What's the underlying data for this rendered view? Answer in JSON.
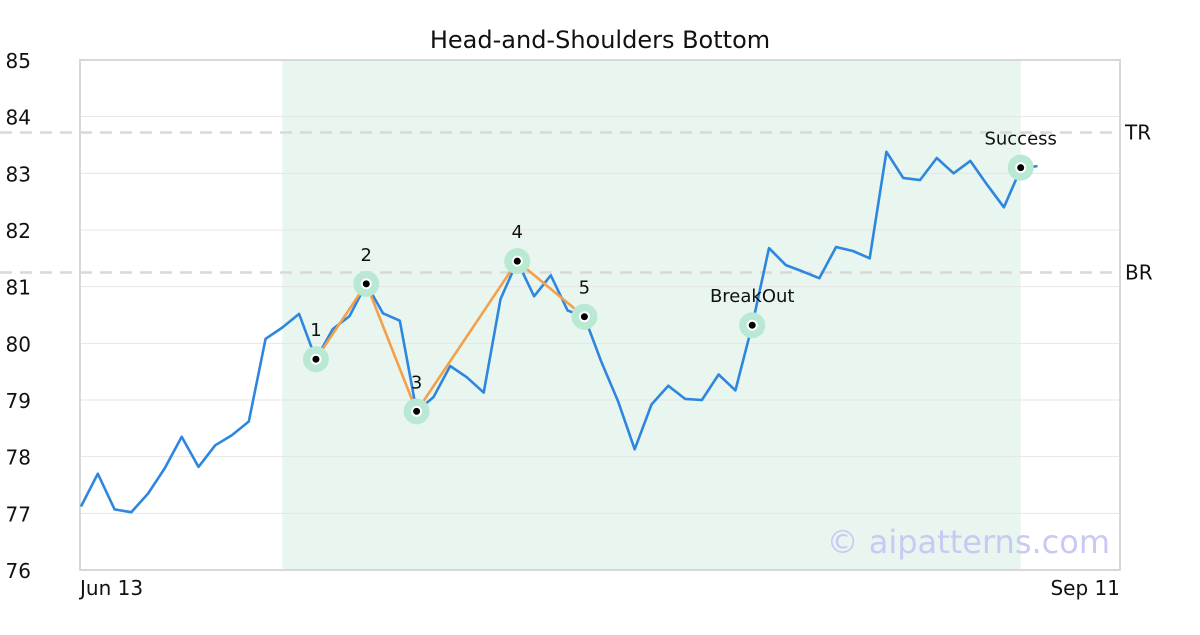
{
  "chart_data": {
    "type": "line",
    "title": "Head-and-Shoulders Bottom",
    "xlabel": "",
    "ylabel": "",
    "ylim": [
      76,
      85
    ],
    "yticks": [
      76,
      77,
      78,
      79,
      80,
      81,
      82,
      83,
      84,
      85
    ],
    "x_tick_labels": [
      "Jun 13",
      "Sep 11"
    ],
    "grid": true,
    "watermark": "© aipatterns.com",
    "series": [
      {
        "color": "#2e86de",
        "values": [
          77.12,
          77.7,
          77.07,
          77.02,
          77.35,
          77.8,
          78.35,
          77.82,
          78.2,
          78.38,
          78.62,
          80.08,
          80.28,
          80.52,
          79.72,
          80.25,
          80.48,
          81.05,
          80.53,
          80.4,
          78.8,
          79.05,
          79.6,
          79.4,
          79.13,
          80.78,
          81.45,
          80.83,
          81.2,
          80.58,
          80.47,
          79.68,
          78.98,
          78.13,
          78.92,
          79.25,
          79.02,
          79.0,
          79.45,
          79.17,
          80.32,
          81.68,
          81.38,
          81.27,
          81.15,
          81.7,
          81.63,
          81.5,
          83.38,
          82.92,
          82.88,
          83.27,
          83.0,
          83.22,
          82.8,
          82.4,
          83.08,
          83.13
        ]
      }
    ],
    "pattern_region": {
      "start_index": 12,
      "end_index": 56,
      "color": "#e8f6ef"
    },
    "pattern_line": {
      "color": "#f4a04a",
      "points": [
        {
          "index": 14,
          "value": 79.72
        },
        {
          "index": 17,
          "value": 81.05
        },
        {
          "index": 20,
          "value": 78.8
        },
        {
          "index": 26,
          "value": 81.45
        },
        {
          "index": 30,
          "value": 80.47
        }
      ]
    },
    "markers": [
      {
        "label": "1",
        "index": 14,
        "value": 79.72
      },
      {
        "label": "2",
        "index": 17,
        "value": 81.05
      },
      {
        "label": "3",
        "index": 20,
        "value": 78.8
      },
      {
        "label": "4",
        "index": 26,
        "value": 81.45
      },
      {
        "label": "5",
        "index": 30,
        "value": 80.47
      },
      {
        "label": "BreakOut",
        "index": 40,
        "value": 80.32
      },
      {
        "label": "Success",
        "index": 56,
        "value": 83.1
      }
    ],
    "reference_lines": [
      {
        "label": "TR",
        "value": 83.72
      },
      {
        "label": "BR",
        "value": 81.25
      }
    ],
    "colors": {
      "series": "#2e86de",
      "pattern_line": "#f4a04a",
      "marker_halo": "#b9e8d3",
      "reference_line": "#d9d9d9",
      "watermark": "#c9c9f5",
      "grid": "#e6e6e6",
      "frame": "#d8d8d8"
    }
  }
}
